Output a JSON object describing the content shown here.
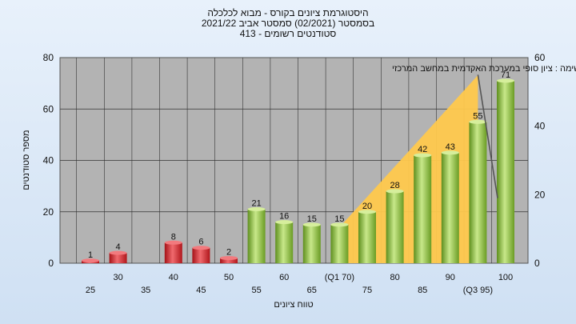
{
  "chart_data": {
    "type": "bar",
    "title_lines": [
      "היסטוגרמת ציונים בקורס - מבוא לכלכלה",
      "בסמסטר  (02/2021)  סמסטר אביב 2021/22",
      "סטודנטים רשומים - 413"
    ],
    "ylabel": "מספר סטודנטים",
    "xlabel": "טווח ציונים",
    "annotation": "בחשימה : ציון סופי במערכת האקדמית במחשב המרכזי",
    "ylim": [
      0,
      80
    ],
    "yticks": [
      0,
      20,
      40,
      60,
      80
    ],
    "y2lim": [
      0,
      60
    ],
    "y2ticks": [
      0,
      20,
      40,
      60
    ],
    "categories": [
      "25",
      "30",
      "35",
      "40",
      "45",
      "50",
      "55",
      "60",
      "65",
      "(Q1 70)",
      "75",
      "80",
      "85",
      "90",
      "(Q3 95)",
      "100"
    ],
    "values": [
      1,
      4,
      0,
      8,
      6,
      2,
      21,
      16,
      15,
      15,
      20,
      28,
      42,
      43,
      55,
      71
    ],
    "bar_colors": [
      "#d8262b",
      "#d8262b",
      "#d8262b",
      "#d8262b",
      "#d8262b",
      "#d8262b",
      "#8fc043",
      "#8fc043",
      "#8fc043",
      "#8fc043",
      "#8fc043",
      "#8fc043",
      "#8fc043",
      "#8fc043",
      "#8fc043",
      "#8fc043"
    ],
    "area_series": {
      "color": "#ffc94d",
      "x_categories": [
        "(Q1 70)",
        "(Q3 95)"
      ],
      "values": [
        14,
        55
      ]
    },
    "trend_line": {
      "color": "#555555",
      "x_categories": [
        "(Q3 95)",
        "100"
      ],
      "values": [
        55,
        19
      ]
    },
    "grid": true,
    "legend": "none"
  }
}
